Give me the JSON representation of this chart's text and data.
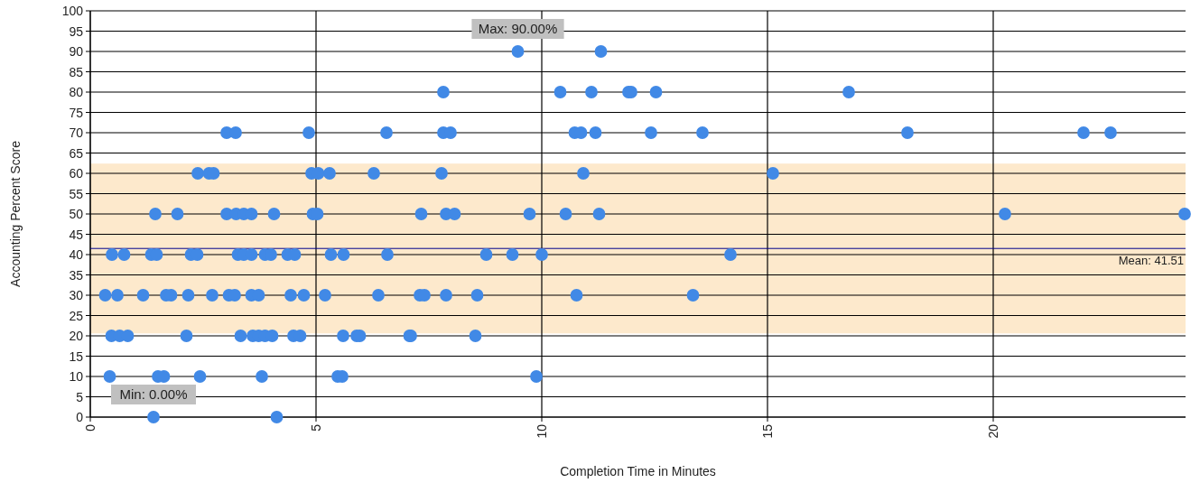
{
  "chart_data": {
    "type": "scatter",
    "xlabel": "Completion Time in Minutes",
    "ylabel": "Accounting Percent Score",
    "xlim": [
      0,
      24.26
    ],
    "xticks": [
      0,
      5,
      10,
      15,
      20
    ],
    "ylim": [
      0,
      100
    ],
    "yticks": [
      0,
      5,
      10,
      15,
      20,
      25,
      30,
      35,
      40,
      45,
      50,
      55,
      60,
      65,
      70,
      75,
      80,
      85,
      90,
      95,
      100
    ],
    "grid": true,
    "marker": "circle",
    "bands": [
      {
        "axis": "y",
        "from": 20.6,
        "to": 62.4,
        "color": "#fde9cc"
      }
    ],
    "ref_lines": [
      {
        "axis": "y",
        "value": 41.51,
        "label": "Mean: 41.51",
        "color": "#00008b"
      }
    ],
    "annotations": [
      {
        "text": "Max: 90.00%",
        "x": 9.47,
        "y": 90
      },
      {
        "text": "Min: 0.00%",
        "x": 1.4,
        "y": 0
      }
    ],
    "series": [
      {
        "color": "#4189e6",
        "x": [
          9.47,
          11.31,
          7.82,
          10.41,
          11.1,
          11.92,
          11.98,
          12.53,
          16.8,
          3.02,
          3.22,
          4.84,
          6.56,
          7.82,
          7.98,
          10.73,
          10.87,
          11.19,
          12.42,
          13.56,
          18.1,
          22.0,
          22.6,
          2.38,
          2.63,
          2.73,
          4.9,
          5.05,
          5.3,
          6.28,
          7.78,
          10.92,
          15.12,
          1.44,
          1.93,
          3.02,
          3.23,
          3.4,
          3.57,
          4.07,
          4.93,
          5.03,
          7.33,
          7.88,
          8.07,
          9.73,
          10.53,
          11.27,
          20.26,
          24.24,
          0.48,
          0.75,
          1.35,
          1.47,
          2.23,
          2.37,
          3.27,
          3.4,
          3.57,
          3.87,
          4.0,
          4.37,
          4.53,
          5.33,
          5.61,
          6.58,
          8.77,
          9.35,
          10.0,
          14.18,
          0.33,
          0.6,
          1.17,
          1.68,
          1.79,
          2.17,
          2.7,
          3.07,
          3.2,
          3.57,
          3.73,
          4.44,
          4.73,
          5.2,
          6.38,
          7.3,
          7.4,
          7.88,
          8.57,
          10.77,
          13.35,
          0.47,
          0.65,
          0.83,
          2.13,
          3.33,
          3.6,
          3.73,
          3.87,
          4.03,
          4.5,
          4.65,
          5.6,
          5.9,
          5.97,
          7.07,
          7.1,
          8.53,
          0.43,
          1.5,
          1.63,
          2.43,
          3.8,
          5.48,
          5.58,
          9.88,
          1.4,
          4.13
        ],
        "values": [
          90,
          90,
          80,
          80,
          80,
          80,
          80,
          80,
          80,
          70,
          70,
          70,
          70,
          70,
          70,
          70,
          70,
          70,
          70,
          70,
          70,
          70,
          70,
          60,
          60,
          60,
          60,
          60,
          60,
          60,
          60,
          60,
          60,
          50,
          50,
          50,
          50,
          50,
          50,
          50,
          50,
          50,
          50,
          50,
          50,
          50,
          50,
          50,
          50,
          50,
          40,
          40,
          40,
          40,
          40,
          40,
          40,
          40,
          40,
          40,
          40,
          40,
          40,
          40,
          40,
          40,
          40,
          40,
          40,
          40,
          30,
          30,
          30,
          30,
          30,
          30,
          30,
          30,
          30,
          30,
          30,
          30,
          30,
          30,
          30,
          30,
          30,
          30,
          30,
          30,
          30,
          20,
          20,
          20,
          20,
          20,
          20,
          20,
          20,
          20,
          20,
          20,
          20,
          20,
          20,
          20,
          20,
          20,
          10,
          10,
          10,
          10,
          10,
          10,
          10,
          10,
          0,
          0
        ]
      }
    ]
  }
}
